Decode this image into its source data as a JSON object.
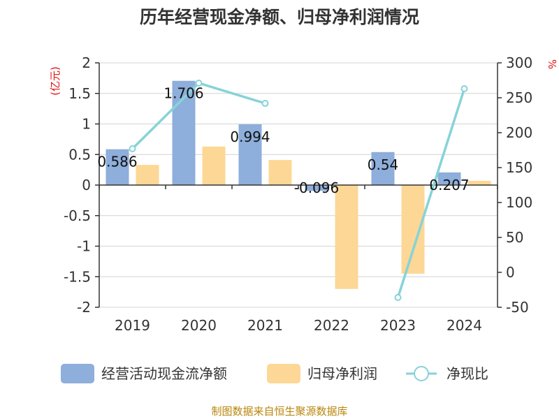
{
  "chart_data": {
    "type": "bar",
    "title": "历年经营现金净额、归母净利润情况",
    "categories": [
      "2019",
      "2020",
      "2021",
      "2022",
      "2023",
      "2024"
    ],
    "series": [
      {
        "name": "经营活动现金流净额",
        "kind": "bar",
        "axis": "left",
        "color": "#8eaedb",
        "values": [
          0.586,
          1.706,
          0.994,
          -0.096,
          0.54,
          0.207
        ],
        "labels": [
          "0.586",
          "1.706",
          "0.994",
          "-0.096",
          "0.54",
          "0.207"
        ]
      },
      {
        "name": "归母净利润",
        "kind": "bar",
        "axis": "left",
        "color": "#fdd795",
        "values": [
          0.33,
          0.63,
          0.41,
          -1.7,
          -1.45,
          0.07
        ]
      },
      {
        "name": "净现比",
        "kind": "line",
        "axis": "right",
        "color": "#86d3d8",
        "values": [
          177,
          271,
          242,
          null,
          -36,
          263
        ]
      }
    ],
    "y_left": {
      "unit": "(亿元)",
      "range": [
        -2,
        2
      ],
      "ticks": [
        "2",
        "1.5",
        "1",
        "0.5",
        "0",
        "-0.5",
        "-1",
        "-1.5",
        "-2"
      ]
    },
    "y_right": {
      "unit": "%",
      "range": [
        -50,
        300
      ],
      "ticks": [
        "300",
        "250",
        "200",
        "150",
        "100",
        "50",
        "0",
        "-50"
      ]
    },
    "legend_position": "bottom",
    "grid": true
  },
  "source": "制图数据来自恒生聚源数据库"
}
